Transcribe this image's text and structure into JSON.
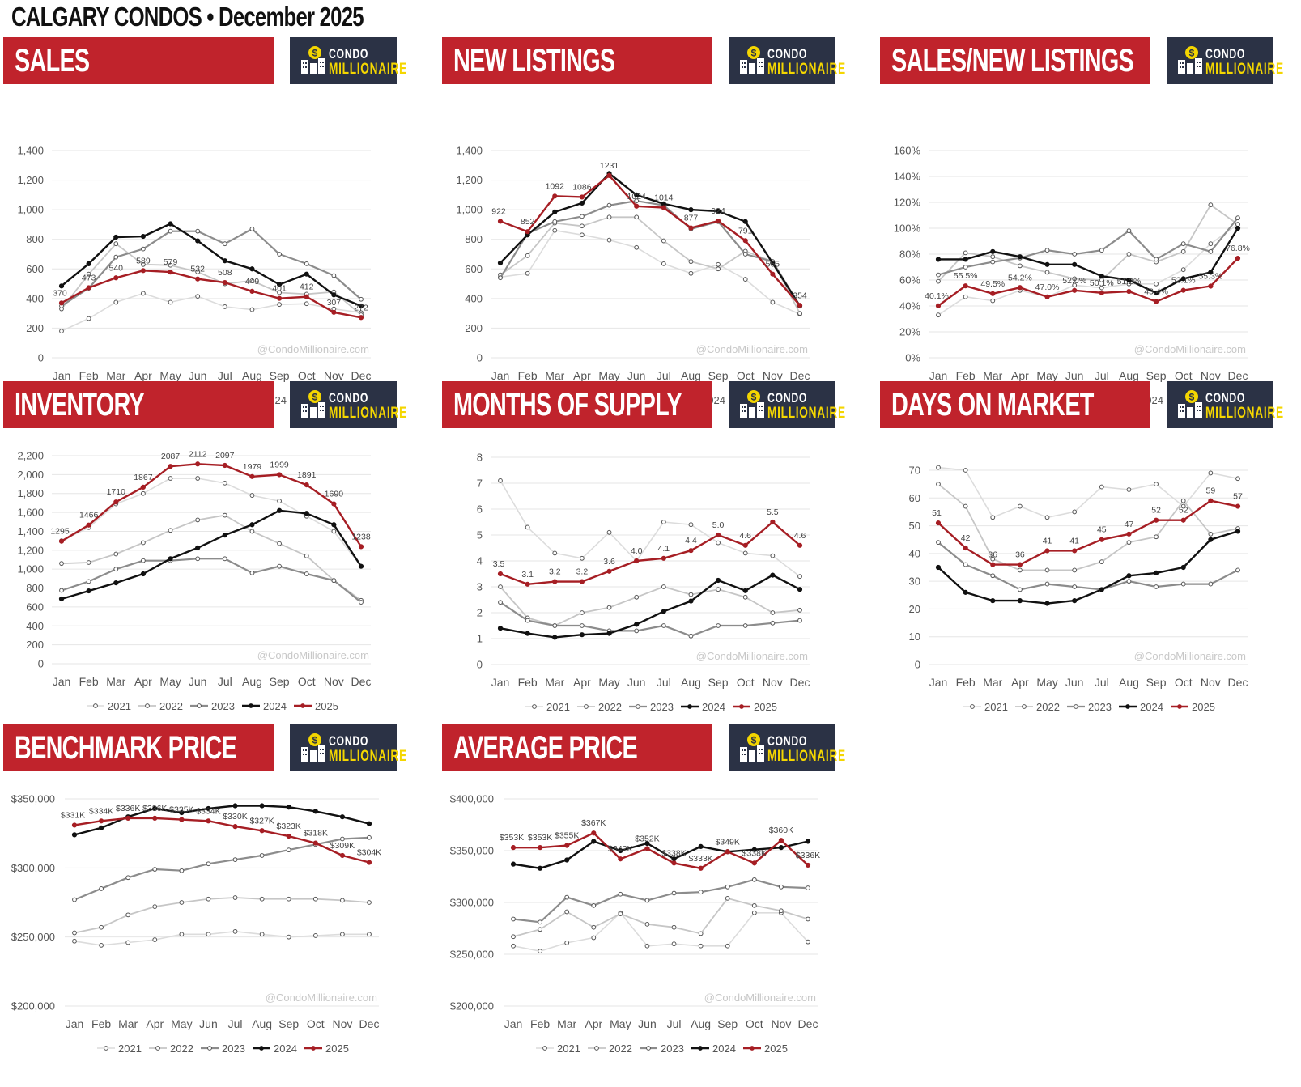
{
  "page": {
    "title": "CALGARY CONDOS • December 2025"
  },
  "brand": {
    "line1": "CONDO",
    "line2": "MILLIONAIRE",
    "watermark": "@CondoMillionaire.com"
  },
  "series_styles": [
    {
      "name": "2021",
      "color": "#dcdcdc",
      "width": 1.6
    },
    {
      "name": "2022",
      "color": "#c6c6c6",
      "width": 1.8
    },
    {
      "name": "2023",
      "color": "#8c8c8c",
      "width": 2.2
    },
    {
      "name": "2024",
      "color": "#111111",
      "width": 2.4
    },
    {
      "name": "2025",
      "color": "#a61e24",
      "width": 2.4
    }
  ],
  "chart_data": [
    {
      "id": "sales",
      "title": "SALES",
      "type": "line",
      "categories": [
        "Jan",
        "Feb",
        "Mar",
        "Apr",
        "May",
        "Jun",
        "Jul",
        "Aug",
        "Sep",
        "Oct",
        "Nov",
        "Dec"
      ],
      "ylim": [
        0,
        1400
      ],
      "yticks": [
        0,
        200,
        400,
        600,
        800,
        1000,
        1200,
        1400
      ],
      "yformat": "comma",
      "series": [
        {
          "name": "2021",
          "values": [
            180,
            265,
            375,
            435,
            375,
            415,
            345,
            325,
            360,
            365,
            330,
            305
          ]
        },
        {
          "name": "2022",
          "values": [
            330,
            565,
            770,
            630,
            625,
            580,
            500,
            520,
            440,
            430,
            445,
            290
          ]
        },
        {
          "name": "2023",
          "values": [
            350,
            470,
            680,
            735,
            855,
            855,
            770,
            870,
            700,
            635,
            555,
            395
          ]
        },
        {
          "name": "2024",
          "values": [
            485,
            635,
            815,
            820,
            905,
            790,
            655,
            600,
            495,
            565,
            425,
            350
          ]
        },
        {
          "name": "2025",
          "values": [
            370,
            473,
            540,
            589,
            579,
            532,
            508,
            449,
            401,
            412,
            307,
            272
          ]
        }
      ],
      "data_labels": [
        "370",
        "473",
        "540",
        "589",
        "579",
        "532",
        "508",
        "449",
        "401",
        "412",
        "307",
        "272"
      ]
    },
    {
      "id": "new_listings",
      "title": "NEW LISTINGS",
      "type": "line",
      "categories": [
        "Jan",
        "Feb",
        "Mar",
        "Apr",
        "May",
        "Jun",
        "Jul",
        "Aug",
        "Sep",
        "Oct",
        "Nov",
        "Dec"
      ],
      "ylim": [
        0,
        1400
      ],
      "yticks": [
        0,
        200,
        400,
        600,
        800,
        1000,
        1200,
        1400
      ],
      "yformat": "comma",
      "series": [
        {
          "name": "2021",
          "values": [
            545,
            570,
            860,
            830,
            795,
            745,
            635,
            570,
            630,
            530,
            375,
            295
          ]
        },
        {
          "name": "2022",
          "values": [
            560,
            690,
            910,
            890,
            950,
            950,
            790,
            650,
            600,
            720,
            650,
            300
          ]
        },
        {
          "name": "2023",
          "values": [
            540,
            840,
            920,
            955,
            1030,
            1060,
            1030,
            870,
            920,
            700,
            650,
            350
          ]
        },
        {
          "name": "2024",
          "values": [
            640,
            830,
            985,
            1045,
            1245,
            1100,
            1040,
            1000,
            990,
            920,
            640,
            350
          ]
        },
        {
          "name": "2025",
          "values": [
            922,
            852,
            1092,
            1086,
            1231,
            1024,
            1014,
            877,
            924,
            791,
            565,
            354
          ]
        }
      ],
      "data_labels": [
        "922",
        "852",
        "1092",
        "1086",
        "1231",
        "1024",
        "1014",
        "877",
        "924",
        "791",
        "565",
        "354"
      ]
    },
    {
      "id": "sales_new_listings",
      "title": "SALES/NEW LISTINGS",
      "type": "line",
      "categories": [
        "Jan",
        "Feb",
        "Mar",
        "Apr",
        "May",
        "Jun",
        "Jul",
        "Aug",
        "Sep",
        "Oct",
        "Nov",
        "Dec"
      ],
      "ylim": [
        0,
        160
      ],
      "yticks": [
        0,
        20,
        40,
        60,
        80,
        100,
        120,
        140,
        160
      ],
      "yformat": "percent",
      "series": [
        {
          "name": "2021",
          "values": [
            33,
            47,
            44,
            52,
            47,
            56,
            54,
            57,
            57,
            68,
            88,
            103
          ]
        },
        {
          "name": "2022",
          "values": [
            59,
            81,
            78,
            71,
            66,
            61,
            60,
            80,
            74,
            82,
            118,
            103
          ]
        },
        {
          "name": "2023",
          "values": [
            64,
            70,
            74,
            77,
            83,
            80,
            83,
            98,
            76,
            88,
            82,
            108
          ]
        },
        {
          "name": "2024",
          "values": [
            76,
            76,
            82,
            78,
            72,
            72,
            63,
            60,
            50,
            61,
            66,
            100
          ]
        },
        {
          "name": "2025",
          "values": [
            40.1,
            55.5,
            49.5,
            54.2,
            47.0,
            52.0,
            50.1,
            51.2,
            43.4,
            52.1,
            55.3,
            76.8
          ]
        }
      ],
      "data_labels": [
        "40.1%",
        "55.5%",
        "49.5%",
        "54.2%",
        "47.0%",
        "52.0%",
        "50.1%",
        "51.2%",
        "43.4%",
        "52.1%",
        "55.3%",
        "76.8%"
      ]
    },
    {
      "id": "inventory",
      "title": "INVENTORY",
      "type": "line",
      "categories": [
        "Jan",
        "Feb",
        "Mar",
        "Apr",
        "May",
        "Jun",
        "Jul",
        "Aug",
        "Sep",
        "Oct",
        "Nov",
        "Dec"
      ],
      "ylim": [
        0,
        2200
      ],
      "yticks": [
        0,
        200,
        400,
        600,
        800,
        1000,
        1200,
        1400,
        1600,
        1800,
        2000,
        2200
      ],
      "yformat": "comma",
      "series": [
        {
          "name": "2021",
          "values": [
            1300,
            1440,
            1690,
            1800,
            1960,
            1960,
            1910,
            1780,
            1720,
            1560,
            1400,
            1030
          ]
        },
        {
          "name": "2022",
          "values": [
            1060,
            1070,
            1160,
            1280,
            1410,
            1520,
            1570,
            1400,
            1270,
            1140,
            880,
            670
          ]
        },
        {
          "name": "2023",
          "values": [
            775,
            870,
            1000,
            1090,
            1090,
            1110,
            1110,
            960,
            1030,
            950,
            880,
            650
          ]
        },
        {
          "name": "2024",
          "values": [
            685,
            770,
            855,
            950,
            1110,
            1225,
            1360,
            1470,
            1620,
            1590,
            1470,
            1030
          ]
        },
        {
          "name": "2025",
          "values": [
            1295,
            1466,
            1710,
            1867,
            2087,
            2112,
            2097,
            1979,
            1999,
            1891,
            1690,
            1238
          ]
        }
      ],
      "data_labels": [
        "1295",
        "1466",
        "1710",
        "1867",
        "2087",
        "2112",
        "2097",
        "1979",
        "1999",
        "1891",
        "1690",
        "1238"
      ]
    },
    {
      "id": "months_of_supply",
      "title": "MONTHS OF SUPPLY",
      "type": "line",
      "categories": [
        "Jan",
        "Feb",
        "Mar",
        "Apr",
        "May",
        "Jun",
        "Jul",
        "Aug",
        "Sep",
        "Oct",
        "Nov",
        "Dec"
      ],
      "ylim": [
        0,
        8
      ],
      "yticks": [
        0,
        1,
        2,
        3,
        4,
        5,
        6,
        7,
        8
      ],
      "yformat": "plain",
      "series": [
        {
          "name": "2021",
          "values": [
            7.1,
            5.3,
            4.3,
            4.1,
            5.1,
            4.0,
            5.5,
            5.4,
            4.7,
            4.3,
            4.2,
            3.4
          ]
        },
        {
          "name": "2022",
          "values": [
            3.0,
            1.8,
            1.5,
            2.0,
            2.2,
            2.6,
            3.0,
            2.7,
            2.9,
            2.6,
            2.0,
            2.1
          ]
        },
        {
          "name": "2023",
          "values": [
            2.4,
            1.7,
            1.5,
            1.5,
            1.3,
            1.3,
            1.5,
            1.1,
            1.5,
            1.5,
            1.6,
            1.7
          ]
        },
        {
          "name": "2024",
          "values": [
            1.4,
            1.2,
            1.05,
            1.15,
            1.2,
            1.55,
            2.05,
            2.45,
            3.25,
            2.85,
            3.45,
            2.9
          ]
        },
        {
          "name": "2025",
          "values": [
            3.5,
            3.1,
            3.2,
            3.2,
            3.6,
            4.0,
            4.1,
            4.4,
            5.0,
            4.6,
            5.5,
            4.6
          ]
        }
      ],
      "data_labels": [
        "3.5",
        "3.1",
        "3.2",
        "3.2",
        "3.6",
        "4.0",
        "4.1",
        "4.4",
        "5.0",
        "4.6",
        "5.5",
        "4.6"
      ]
    },
    {
      "id": "days_on_market",
      "title": "DAYS ON MARKET",
      "type": "line",
      "categories": [
        "Jan",
        "Feb",
        "Mar",
        "Apr",
        "May",
        "Jun",
        "Jul",
        "Aug",
        "Sep",
        "Oct",
        "Nov",
        "Dec"
      ],
      "ylim": [
        0,
        70
      ],
      "yticks": [
        0,
        10,
        20,
        30,
        40,
        50,
        60,
        70
      ],
      "yformat": "plain",
      "series": [
        {
          "name": "2021",
          "values": [
            71,
            70,
            53,
            57,
            53,
            55,
            64,
            63,
            65,
            57,
            69,
            67
          ]
        },
        {
          "name": "2022",
          "values": [
            65,
            57,
            38,
            34,
            34,
            34,
            37,
            44,
            46,
            59,
            47,
            49
          ]
        },
        {
          "name": "2023",
          "values": [
            44,
            36,
            32,
            27,
            29,
            28,
            27,
            30,
            28,
            29,
            29,
            34
          ]
        },
        {
          "name": "2024",
          "values": [
            35,
            26,
            23,
            23,
            22,
            23,
            27,
            32,
            33,
            35,
            45,
            48
          ]
        },
        {
          "name": "2025",
          "values": [
            51,
            42,
            36,
            36,
            41,
            41,
            45,
            47,
            52,
            52,
            59,
            57
          ]
        }
      ],
      "data_labels": [
        "51",
        "42",
        "36",
        "36",
        "41",
        "41",
        "45",
        "47",
        "52",
        "52",
        "59",
        "57"
      ]
    },
    {
      "id": "benchmark_price",
      "title": "BENCHMARK PRICE",
      "type": "line",
      "categories": [
        "Jan",
        "Feb",
        "Mar",
        "Apr",
        "May",
        "Jun",
        "Jul",
        "Aug",
        "Sep",
        "Oct",
        "Nov",
        "Dec"
      ],
      "ylim": [
        200000,
        350000
      ],
      "yticks": [
        200000,
        250000,
        300000,
        350000
      ],
      "yformat": "dollar",
      "series": [
        {
          "name": "2021",
          "values": [
            247000,
            244000,
            246000,
            248000,
            252000,
            252000,
            254000,
            252000,
            250000,
            251000,
            252000,
            252000
          ]
        },
        {
          "name": "2022",
          "values": [
            253000,
            257000,
            266000,
            272000,
            275000,
            277500,
            278500,
            277500,
            277500,
            277500,
            276500,
            275000
          ]
        },
        {
          "name": "2023",
          "values": [
            277000,
            285000,
            293000,
            299000,
            298000,
            303000,
            306000,
            309000,
            313000,
            317000,
            321000,
            322000
          ]
        },
        {
          "name": "2024",
          "values": [
            324000,
            329000,
            337000,
            343000,
            340000,
            343000,
            345000,
            345000,
            344000,
            341000,
            337000,
            332000
          ]
        },
        {
          "name": "2025",
          "values": [
            331000,
            334000,
            336000,
            336000,
            335000,
            334000,
            330000,
            327000,
            323000,
            318000,
            309000,
            304000
          ]
        }
      ],
      "data_labels": [
        "$331K",
        "$334K",
        "$336K",
        "$336K",
        "$335K",
        "$334K",
        "$330K",
        "$327K",
        "$323K",
        "$318K",
        "$309K",
        "$304K"
      ]
    },
    {
      "id": "average_price",
      "title": "AVERAGE PRICE",
      "type": "line",
      "categories": [
        "Jan",
        "Feb",
        "Mar",
        "Apr",
        "May",
        "Jun",
        "Jul",
        "Aug",
        "Sep",
        "Oct",
        "Nov",
        "Dec"
      ],
      "ylim": [
        200000,
        400000
      ],
      "yticks": [
        200000,
        250000,
        300000,
        350000,
        400000
      ],
      "yformat": "dollar",
      "series": [
        {
          "name": "2021",
          "values": [
            258000,
            253000,
            261000,
            266000,
            290000,
            258000,
            260000,
            258000,
            258000,
            290000,
            290000,
            262000
          ]
        },
        {
          "name": "2022",
          "values": [
            267000,
            274000,
            291000,
            276000,
            289000,
            279000,
            276000,
            270000,
            304000,
            297000,
            292000,
            284000
          ]
        },
        {
          "name": "2023",
          "values": [
            284000,
            281000,
            305000,
            297000,
            308000,
            302000,
            309000,
            310000,
            315000,
            322000,
            315000,
            314000
          ]
        },
        {
          "name": "2024",
          "values": [
            337000,
            333000,
            341000,
            359000,
            350000,
            357000,
            342000,
            354000,
            349000,
            351000,
            353000,
            359000
          ]
        },
        {
          "name": "2025",
          "values": [
            353000,
            353000,
            355000,
            367000,
            342000,
            352000,
            338000,
            333000,
            349000,
            338000,
            360000,
            336000
          ]
        }
      ],
      "data_labels": [
        "$353K",
        "$353K",
        "$355K",
        "$367K",
        "$342K",
        "$352K",
        "$338K",
        "$333K",
        "$349K",
        "$338K",
        "$360K",
        "$336K"
      ]
    }
  ]
}
